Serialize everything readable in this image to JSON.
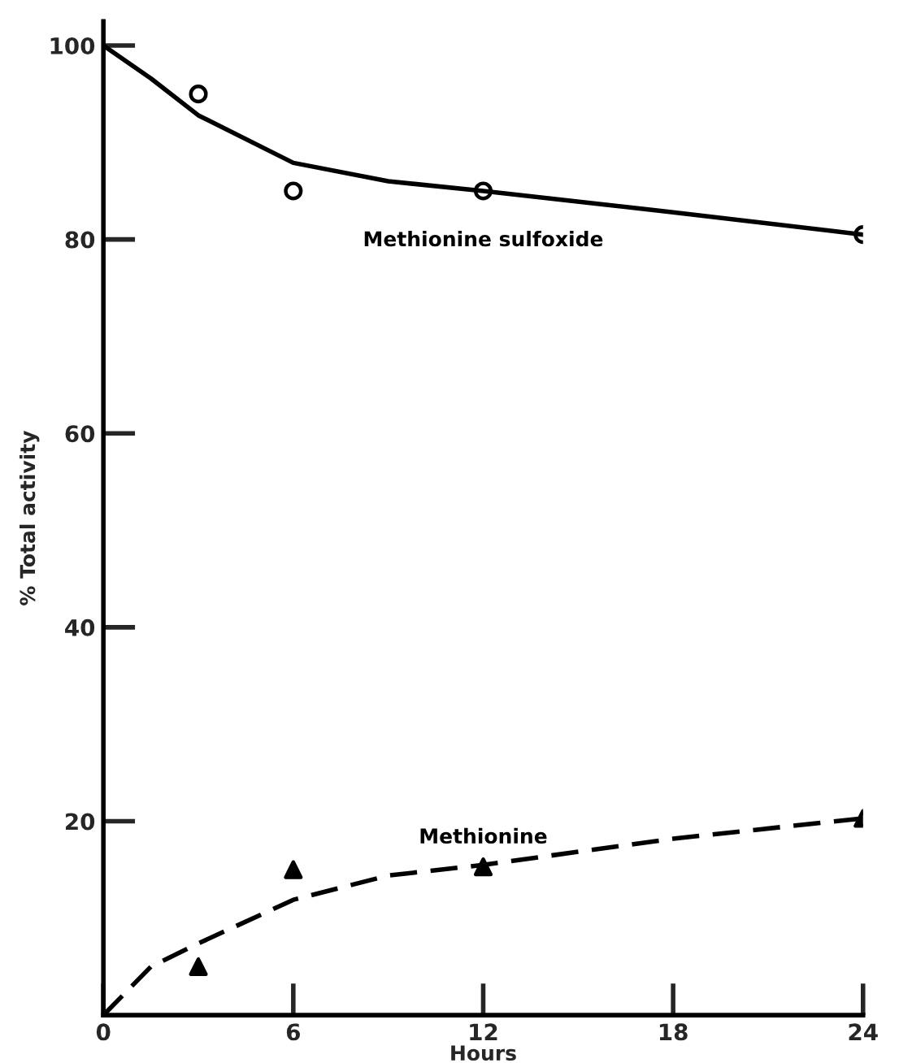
{
  "chart_data": {
    "type": "scatter",
    "xlabel": "Hours",
    "ylabel": "% Total activity",
    "xlim": [
      0,
      24
    ],
    "ylim": [
      0,
      102.5
    ],
    "xticks": [
      0,
      6,
      12,
      18,
      24
    ],
    "yticks": [
      20,
      40,
      60,
      80,
      100
    ],
    "grid": false,
    "legend": false,
    "series": [
      {
        "marker": "circle",
        "color": "#000000",
        "x": [
          3,
          6,
          12,
          24
        ],
        "values": [
          95,
          85,
          85,
          80.5
        ]
      },
      {
        "type": "line",
        "name": "Methionine sulfoxide",
        "line_style": "solid",
        "color": "#000000",
        "x": [
          0,
          1.5,
          3,
          6,
          9,
          12,
          18,
          24
        ],
        "values": [
          100,
          96.6,
          92.8,
          87.9,
          86,
          85,
          82.8,
          80.5
        ]
      },
      {
        "marker": "triangle",
        "color": "#000000",
        "x": [
          3,
          6,
          12,
          24
        ],
        "values": [
          5,
          15,
          15.3,
          20.3
        ]
      },
      {
        "type": "line",
        "name": "Methionine",
        "line_style": "dashed",
        "color": "#000000",
        "x": [
          0,
          1.5,
          3,
          6,
          9,
          12,
          18,
          24
        ],
        "values": [
          0,
          5,
          7.4,
          11.9,
          14.4,
          15.5,
          18.2,
          20.3
        ]
      }
    ]
  }
}
